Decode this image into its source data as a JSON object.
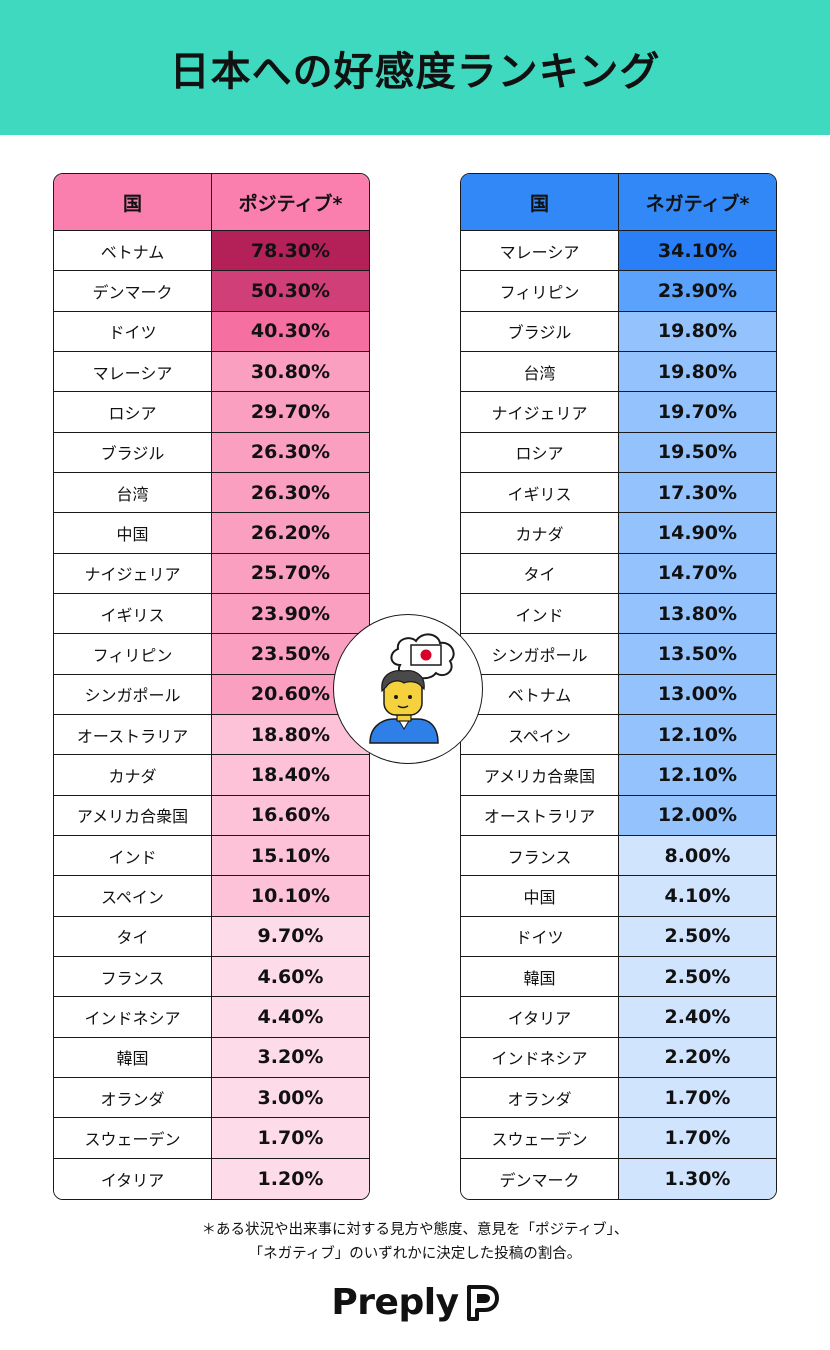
{
  "title": "日本への好感度ランキング",
  "chart_data": [
    {
      "type": "table",
      "name": "positive",
      "columns": [
        "国",
        "ポジティブ*"
      ],
      "rows": [
        {
          "country": "ベトナム",
          "value": "78.30%",
          "fill": "#b42158",
          "text": "#111"
        },
        {
          "country": "デンマーク",
          "value": "50.30%",
          "fill": "#d13f78",
          "text": "#111"
        },
        {
          "country": "ドイツ",
          "value": "40.30%",
          "fill": "#f66fa1",
          "text": "#111"
        },
        {
          "country": "マレーシア",
          "value": "30.80%",
          "fill": "#fb9fc0",
          "text": "#111"
        },
        {
          "country": "ロシア",
          "value": "29.70%",
          "fill": "#fb9fc0",
          "text": "#111"
        },
        {
          "country": "ブラジル",
          "value": "26.30%",
          "fill": "#fb9fc0",
          "text": "#111"
        },
        {
          "country": "台湾",
          "value": "26.30%",
          "fill": "#fb9fc0",
          "text": "#111"
        },
        {
          "country": "中国",
          "value": "26.20%",
          "fill": "#fb9fc0",
          "text": "#111"
        },
        {
          "country": "ナイジェリア",
          "value": "25.70%",
          "fill": "#fb9fc0",
          "text": "#111"
        },
        {
          "country": "イギリス",
          "value": "23.90%",
          "fill": "#fb9fc0",
          "text": "#111"
        },
        {
          "country": "フィリピン",
          "value": "23.50%",
          "fill": "#fb9fc0",
          "text": "#111"
        },
        {
          "country": "シンガポール",
          "value": "20.60%",
          "fill": "#fb9fc0",
          "text": "#111"
        },
        {
          "country": "オーストラリア",
          "value": "18.80%",
          "fill": "#fdc1d8",
          "text": "#111"
        },
        {
          "country": "カナダ",
          "value": "18.40%",
          "fill": "#fdc1d8",
          "text": "#111"
        },
        {
          "country": "アメリカ合衆国",
          "value": "16.60%",
          "fill": "#fdc1d8",
          "text": "#111"
        },
        {
          "country": "インド",
          "value": "15.10%",
          "fill": "#fdc1d8",
          "text": "#111"
        },
        {
          "country": "スペイン",
          "value": "10.10%",
          "fill": "#fdc1d8",
          "text": "#111"
        },
        {
          "country": "タイ",
          "value": "9.70%",
          "fill": "#fddbe8",
          "text": "#111"
        },
        {
          "country": "フランス",
          "value": "4.60%",
          "fill": "#fddbe8",
          "text": "#111"
        },
        {
          "country": "インドネシア",
          "value": "4.40%",
          "fill": "#fddbe8",
          "text": "#111"
        },
        {
          "country": "韓国",
          "value": "3.20%",
          "fill": "#fddbe8",
          "text": "#111"
        },
        {
          "country": "オランダ",
          "value": "3.00%",
          "fill": "#fddbe8",
          "text": "#111"
        },
        {
          "country": "スウェーデン",
          "value": "1.70%",
          "fill": "#fddbe8",
          "text": "#111"
        },
        {
          "country": "イタリア",
          "value": "1.20%",
          "fill": "#fddbe8",
          "text": "#111"
        }
      ]
    },
    {
      "type": "table",
      "name": "negative",
      "columns": [
        "国",
        "ネガティブ*"
      ],
      "rows": [
        {
          "country": "マレーシア",
          "value": "34.10%",
          "fill": "#2b7ff6",
          "text": "#111"
        },
        {
          "country": "フィリピン",
          "value": "23.90%",
          "fill": "#5aa2fb",
          "text": "#111"
        },
        {
          "country": "ブラジル",
          "value": "19.80%",
          "fill": "#94c2fc",
          "text": "#111"
        },
        {
          "country": "台湾",
          "value": "19.80%",
          "fill": "#94c2fc",
          "text": "#111"
        },
        {
          "country": "ナイジェリア",
          "value": "19.70%",
          "fill": "#94c2fc",
          "text": "#111"
        },
        {
          "country": "ロシア",
          "value": "19.50%",
          "fill": "#94c2fc",
          "text": "#111"
        },
        {
          "country": "イギリス",
          "value": "17.30%",
          "fill": "#94c2fc",
          "text": "#111"
        },
        {
          "country": "カナダ",
          "value": "14.90%",
          "fill": "#94c2fc",
          "text": "#111"
        },
        {
          "country": "タイ",
          "value": "14.70%",
          "fill": "#94c2fc",
          "text": "#111"
        },
        {
          "country": "インド",
          "value": "13.80%",
          "fill": "#94c2fc",
          "text": "#111"
        },
        {
          "country": "シンガポール",
          "value": "13.50%",
          "fill": "#94c2fc",
          "text": "#111"
        },
        {
          "country": "ベトナム",
          "value": "13.00%",
          "fill": "#94c2fc",
          "text": "#111"
        },
        {
          "country": "スペイン",
          "value": "12.10%",
          "fill": "#94c2fc",
          "text": "#111"
        },
        {
          "country": "アメリカ合衆国",
          "value": "12.10%",
          "fill": "#94c2fc",
          "text": "#111"
        },
        {
          "country": "オーストラリア",
          "value": "12.00%",
          "fill": "#94c2fc",
          "text": "#111"
        },
        {
          "country": "フランス",
          "value": "8.00%",
          "fill": "#d1e4fe",
          "text": "#111"
        },
        {
          "country": "中国",
          "value": "4.10%",
          "fill": "#d1e4fe",
          "text": "#111"
        },
        {
          "country": "ドイツ",
          "value": "2.50%",
          "fill": "#d1e4fe",
          "text": "#111"
        },
        {
          "country": "韓国",
          "value": "2.50%",
          "fill": "#d1e4fe",
          "text": "#111"
        },
        {
          "country": "イタリア",
          "value": "2.40%",
          "fill": "#d1e4fe",
          "text": "#111"
        },
        {
          "country": "インドネシア",
          "value": "2.20%",
          "fill": "#d1e4fe",
          "text": "#111"
        },
        {
          "country": "オランダ",
          "value": "1.70%",
          "fill": "#d1e4fe",
          "text": "#111"
        },
        {
          "country": "スウェーデン",
          "value": "1.70%",
          "fill": "#d1e4fe",
          "text": "#111"
        },
        {
          "country": "デンマーク",
          "value": "1.30%",
          "fill": "#d1e4fe",
          "text": "#111"
        }
      ]
    }
  ],
  "colors": {
    "header_bg": "#3ed9bf",
    "positive_header": "#fb7fae",
    "negative_header": "#3288f7"
  },
  "footnote": {
    "line1": "＊ある状況や出来事に対する見方や態度、意見を「ポジティブ」、",
    "line2": "「ネガティブ」のいずれかに決定した投稿の割合。"
  },
  "logo": {
    "text": "Preply"
  },
  "badge": {
    "icon": "person-thinking-japan-flag-icon"
  }
}
